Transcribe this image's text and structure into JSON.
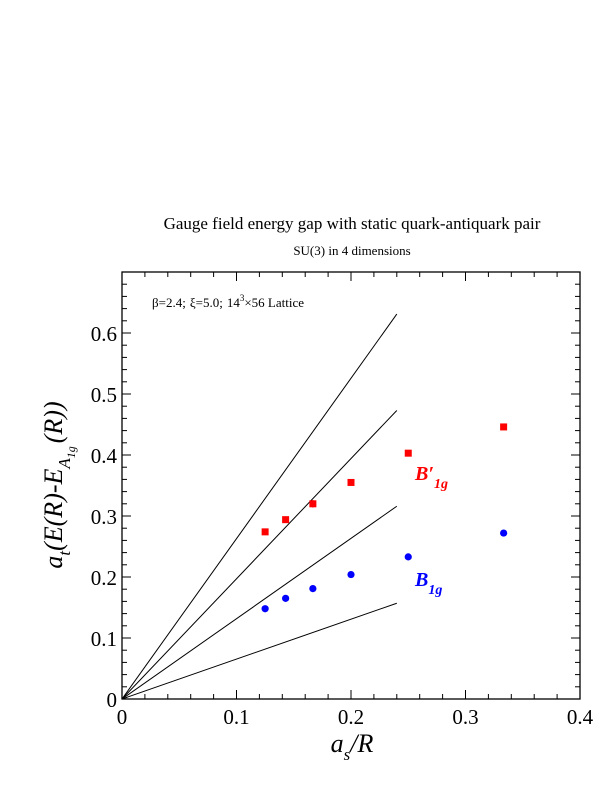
{
  "chart_data": {
    "type": "scatter",
    "title": "Gauge field energy gap with static quark-antiquark pair",
    "subtitle": "SU(3) in 4 dimensions",
    "annotation": {
      "beta": "β=2.4;",
      "xi": "ξ=5.0;",
      "lattice_base": "14",
      "lattice_exp": "3",
      "lattice_rest": "×56 Lattice"
    },
    "xlabel": {
      "main": "a",
      "sub": "s",
      "rest": "/R"
    },
    "ylabel": {
      "pre": "a",
      "sub1": "t",
      "mid": "(E(R)-E",
      "sub2": "A",
      "sub3": "1g",
      "post": "(R))"
    },
    "xlim": [
      0,
      0.4
    ],
    "ylim": [
      0,
      0.7
    ],
    "x_ticks": [
      0,
      0.1,
      0.2,
      0.3,
      0.4
    ],
    "x_tick_labels": [
      "0",
      "0.1",
      "0.2",
      "0.3",
      "0.4"
    ],
    "y_ticks": [
      0,
      0.1,
      0.2,
      0.3,
      0.4,
      0.5,
      0.6
    ],
    "y_tick_labels": [
      "0",
      "0.1",
      "0.2",
      "0.3",
      "0.4",
      "0.5",
      "0.6"
    ],
    "grid": false,
    "lines": [
      {
        "x": [
          0,
          0.24
        ],
        "y": [
          0,
          0.157
        ]
      },
      {
        "x": [
          0,
          0.24
        ],
        "y": [
          0,
          0.316
        ]
      },
      {
        "x": [
          0,
          0.24
        ],
        "y": [
          0,
          0.473
        ]
      },
      {
        "x": [
          0,
          0.24
        ],
        "y": [
          0,
          0.631
        ]
      }
    ],
    "series": [
      {
        "name_main": "B′",
        "name_sub": "1g",
        "color": "#ff0000",
        "marker": "square",
        "x": [
          0.125,
          0.1429,
          0.1667,
          0.2,
          0.25,
          0.3333
        ],
        "y": [
          0.274,
          0.294,
          0.32,
          0.355,
          0.403,
          0.446
        ],
        "yerr": [
          0.004,
          0.004,
          0.006,
          0.004,
          0.004,
          0.004
        ]
      },
      {
        "name_main": "B",
        "name_sub": "1g",
        "color": "#0000ff",
        "marker": "circle",
        "x": [
          0.125,
          0.1429,
          0.1667,
          0.2,
          0.25,
          0.3333
        ],
        "y": [
          0.148,
          0.165,
          0.181,
          0.204,
          0.233,
          0.272
        ],
        "yerr": [
          0.003,
          0.003,
          0.003,
          0.003,
          0.003,
          0.003
        ]
      }
    ]
  }
}
